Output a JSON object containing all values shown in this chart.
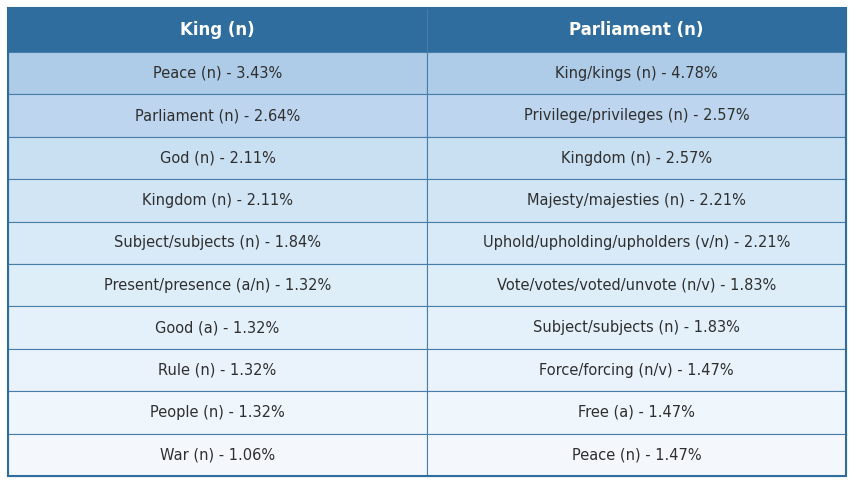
{
  "headers": [
    "King (n)",
    "Parliament (n)"
  ],
  "rows": [
    [
      "Peace (n) - 3.43%",
      "King/kings (n) - 4.78%"
    ],
    [
      "Parliament (n) - 2.64%",
      "Privilege/privileges (n) - 2.57%"
    ],
    [
      "God (n) - 2.11%",
      "Kingdom (n) - 2.57%"
    ],
    [
      "Kingdom (n) - 2.11%",
      "Majesty/majesties (n) - 2.21%"
    ],
    [
      "Subject/subjects (n) - 1.84%",
      "Uphold/upholding/upholders (v/n) - 2.21%"
    ],
    [
      "Present/presence (a/n) - 1.32%",
      "Vote/votes/voted/unvote (n/v) - 1.83%"
    ],
    [
      "Good (a) - 1.32%",
      "Subject/subjects (n) - 1.83%"
    ],
    [
      "Rule (n) - 1.32%",
      "Force/forcing (n/v) - 1.47%"
    ],
    [
      "People (n) - 1.32%",
      "Free (a) - 1.47%"
    ],
    [
      "War (n) - 1.06%",
      "Peace (n) - 1.47%"
    ]
  ],
  "header_bg_color": "#2E6D9E",
  "header_text_color": "#FFFFFF",
  "row_colors": [
    "#AECCE8",
    "#BDD5EE",
    "#C9DFF2",
    "#D2E5F5",
    "#D8EAF7",
    "#DEEEF9",
    "#E4F1FA",
    "#EAF3FB",
    "#EFF6FC",
    "#F4F8FD"
  ],
  "border_color": "#4A7EAA",
  "outer_border_color": "#2E6D9E",
  "text_color": "#2F2F2F",
  "font_size": 10.5,
  "header_font_size": 12,
  "fig_bg_color": "#FFFFFF"
}
